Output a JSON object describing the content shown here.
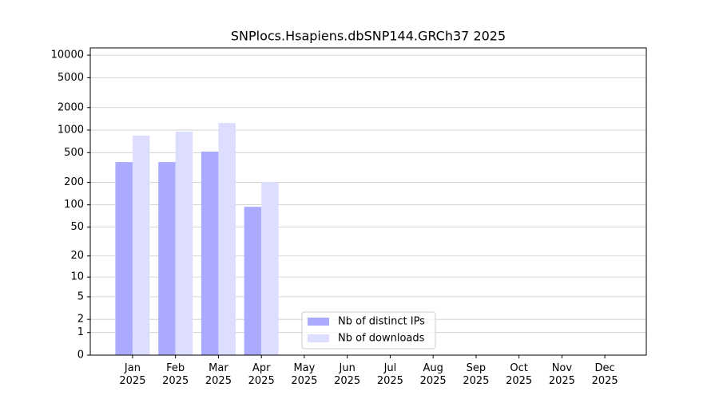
{
  "chart_data": {
    "type": "bar",
    "title": "SNPlocs.Hsapiens.dbSNP144.GRCh37 2025",
    "categories": [
      "Jan 2025",
      "Feb 2025",
      "Mar 2025",
      "Apr 2025",
      "May 2025",
      "Jun 2025",
      "Jul 2025",
      "Aug 2025",
      "Sep 2025",
      "Oct 2025",
      "Nov 2025",
      "Dec 2025"
    ],
    "series": [
      {
        "name": "Nb of distinct IPs",
        "color": "#aaaaff",
        "values": [
          374,
          374,
          516,
          94,
          null,
          null,
          null,
          null,
          null,
          null,
          null,
          null
        ]
      },
      {
        "name": "Nb of downloads",
        "color": "#ddddff",
        "values": [
          843,
          952,
          1246,
          203,
          null,
          null,
          null,
          null,
          null,
          null,
          null,
          null
        ]
      }
    ],
    "yscale": "log1p",
    "ylim": [
      0,
      12500
    ],
    "yticks": [
      0,
      1,
      2,
      5,
      10,
      20,
      50,
      100,
      200,
      500,
      1000,
      2000,
      5000,
      10000
    ],
    "grid": true,
    "legend": "lower center"
  }
}
